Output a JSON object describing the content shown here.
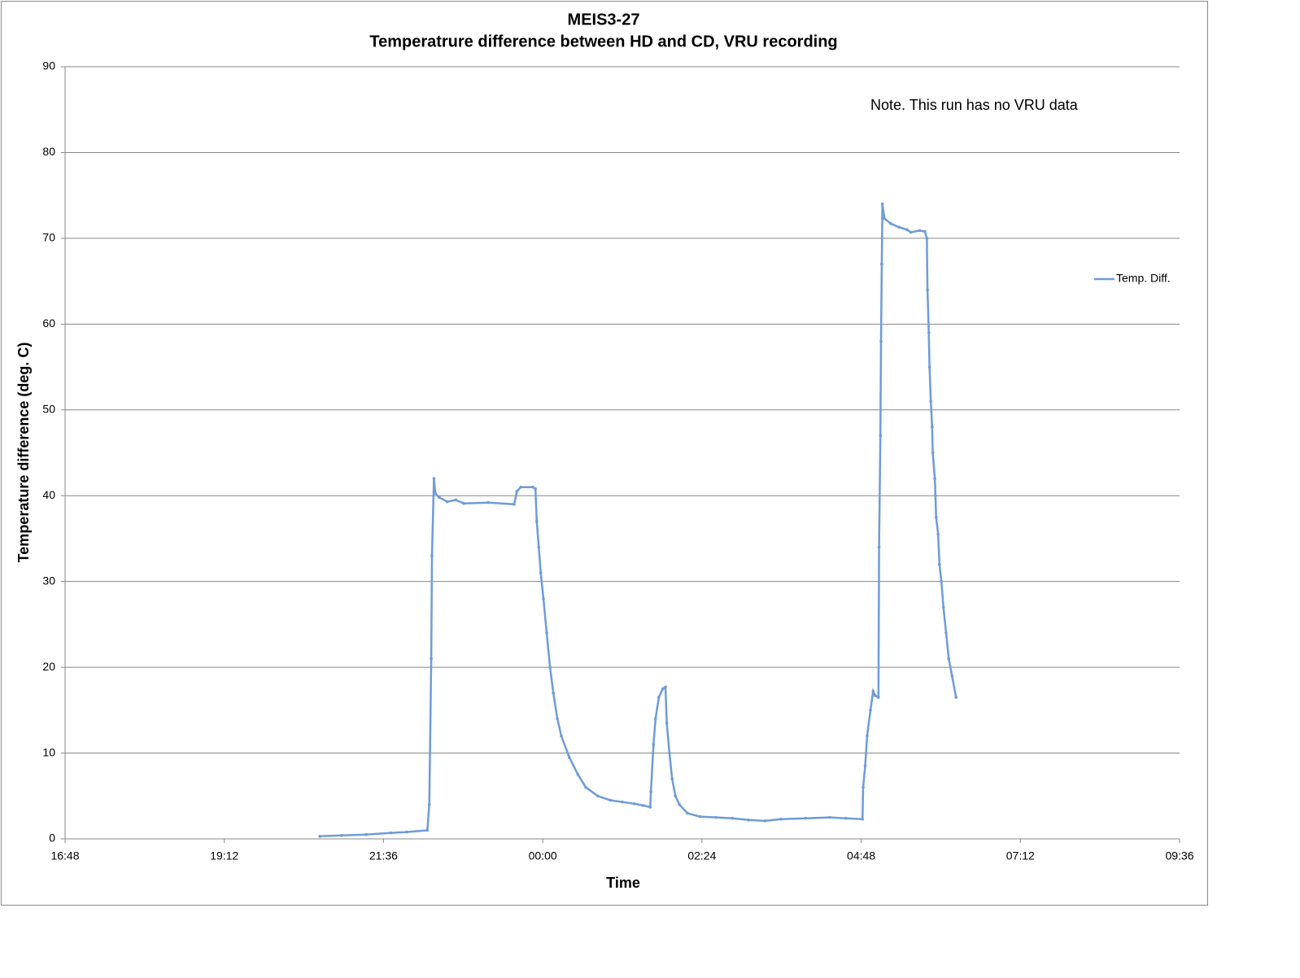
{
  "chart_data": {
    "type": "line",
    "title": "MEIS3-27",
    "subtitle": "Temperatrure difference between HD and CD, VRU recording",
    "annotations": [
      "Note. This run has no VRU data"
    ],
    "x_label": "Time",
    "y_label": "Temperature difference (deg. C)",
    "x": [
      20.64,
      20.97,
      21.34,
      21.71,
      21.95,
      22.26,
      22.29,
      22.32,
      22.33,
      22.36,
      22.38,
      22.44,
      22.56,
      22.69,
      22.81,
      23.18,
      23.57,
      23.61,
      23.67,
      23.85,
      23.89,
      23.91,
      23.94,
      23.97,
      24.01,
      24.06,
      24.11,
      24.16,
      24.22,
      24.28,
      24.4,
      24.53,
      24.65,
      24.83,
      25.02,
      25.2,
      25.38,
      25.51,
      25.62,
      25.63,
      25.67,
      25.7,
      25.75,
      25.81,
      25.85,
      25.87,
      25.91,
      25.95,
      26.0,
      26.06,
      26.18,
      26.37,
      26.61,
      26.86,
      27.1,
      27.35,
      27.59,
      27.96,
      28.33,
      28.57,
      28.82,
      28.83,
      28.86,
      28.89,
      28.94,
      28.98,
      29.01,
      29.06,
      29.07,
      29.09,
      29.1,
      29.11,
      29.12,
      29.15,
      29.25,
      29.37,
      29.49,
      29.55,
      29.68,
      29.76,
      29.79,
      29.8,
      29.82,
      29.83,
      29.85,
      29.87,
      29.88,
      29.91,
      29.92,
      29.93,
      29.96,
      29.98,
      30.01,
      30.04,
      30.08,
      30.12,
      30.17,
      30.23
    ],
    "series": [
      {
        "name": "Temp. Diff.",
        "color": "#6f9bd8",
        "values": [
          0.3,
          0.4,
          0.5,
          0.7,
          0.8,
          1.0,
          4,
          21,
          33,
          42,
          40.3,
          39.8,
          39.3,
          39.5,
          39.1,
          39.2,
          39.0,
          40.5,
          41,
          41,
          40.8,
          37,
          34,
          31,
          28,
          24,
          20,
          17,
          14,
          12,
          9.5,
          7.5,
          6,
          5,
          4.5,
          4.3,
          4.1,
          3.9,
          3.7,
          5.5,
          11,
          14,
          16.5,
          17.5,
          17.7,
          13.5,
          10,
          7,
          5,
          4,
          3,
          2.6,
          2.5,
          2.4,
          2.2,
          2.1,
          2.3,
          2.4,
          2.5,
          2.4,
          2.3,
          6,
          8.5,
          12,
          15,
          17.2,
          16.7,
          16.5,
          34,
          47,
          58,
          67,
          74,
          72.3,
          71.7,
          71.3,
          71,
          70.7,
          70.9,
          70.8,
          70,
          64,
          59,
          55,
          51,
          48,
          45,
          42,
          40,
          37.5,
          35.5,
          32,
          30,
          27,
          24,
          21,
          19,
          16.5
        ]
      }
    ],
    "xlim": [
      16.8,
      33.6
    ],
    "xticks": [
      {
        "value": 16.8,
        "label": "16:48"
      },
      {
        "value": 19.2,
        "label": "19:12"
      },
      {
        "value": 21.6,
        "label": "21:36"
      },
      {
        "value": 24,
        "label": "00:00"
      },
      {
        "value": 26.4,
        "label": "02:24"
      },
      {
        "value": 28.8,
        "label": "04:48"
      },
      {
        "value": 31.2,
        "label": "07:12"
      },
      {
        "value": 33.6,
        "label": "09:36"
      }
    ],
    "ylim": [
      0,
      90
    ],
    "yticks": [
      0,
      10,
      20,
      30,
      40,
      50,
      60,
      70,
      80,
      90
    ],
    "grid": true,
    "legend": "right"
  }
}
